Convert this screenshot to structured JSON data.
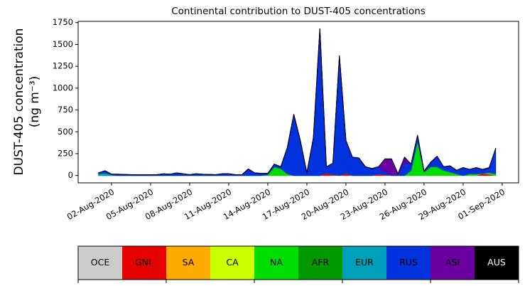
{
  "chart_data": {
    "type": "stacked_area",
    "title": "Continental contribution to DUST-405 concentrations",
    "y_label": [
      "DUST-405 concentration",
      "(ng m⁻³)"
    ],
    "x": [
      "2020-08-01T00:00",
      "2020-08-01T12:00",
      "2020-08-02T00:00",
      "2020-08-02T12:00",
      "2020-08-03T00:00",
      "2020-08-03T12:00",
      "2020-08-04T00:00",
      "2020-08-04T12:00",
      "2020-08-05T00:00",
      "2020-08-05T12:00",
      "2020-08-06T00:00",
      "2020-08-06T12:00",
      "2020-08-07T00:00",
      "2020-08-07T12:00",
      "2020-08-08T00:00",
      "2020-08-08T12:00",
      "2020-08-09T00:00",
      "2020-08-09T12:00",
      "2020-08-10T00:00",
      "2020-08-10T12:00",
      "2020-08-11T00:00",
      "2020-08-11T12:00",
      "2020-08-12T00:00",
      "2020-08-12T12:00",
      "2020-08-13T00:00",
      "2020-08-13T12:00",
      "2020-08-14T00:00",
      "2020-08-14T12:00",
      "2020-08-15T00:00",
      "2020-08-15T12:00",
      "2020-08-16T00:00",
      "2020-08-16T12:00",
      "2020-08-17T00:00",
      "2020-08-17T12:00",
      "2020-08-18T00:00",
      "2020-08-18T12:00",
      "2020-08-19T00:00",
      "2020-08-19T12:00",
      "2020-08-20T00:00",
      "2020-08-20T12:00",
      "2020-08-21T00:00",
      "2020-08-21T12:00",
      "2020-08-22T00:00",
      "2020-08-22T12:00",
      "2020-08-23T00:00",
      "2020-08-23T12:00",
      "2020-08-24T00:00",
      "2020-08-24T12:00",
      "2020-08-25T00:00",
      "2020-08-25T12:00",
      "2020-08-26T00:00",
      "2020-08-26T12:00",
      "2020-08-27T00:00",
      "2020-08-27T12:00",
      "2020-08-28T00:00",
      "2020-08-28T12:00",
      "2020-08-29T00:00",
      "2020-08-29T12:00",
      "2020-08-30T00:00",
      "2020-08-30T12:00",
      "2020-08-31T00:00",
      "2020-08-31T12:00"
    ],
    "series": [
      {
        "name": "OCE",
        "color": "#cccccc",
        "values": [
          0,
          0,
          0,
          0,
          0,
          0,
          0,
          0,
          0,
          0,
          0,
          0,
          0,
          0,
          0,
          0,
          0,
          0,
          0,
          0,
          0,
          0,
          0,
          0,
          0,
          0,
          0,
          0,
          0,
          0,
          0,
          0,
          0,
          0,
          0,
          0,
          0,
          0,
          0,
          0,
          0,
          0,
          0,
          0,
          0,
          0,
          0,
          0,
          0,
          0,
          0,
          0,
          0,
          0,
          0,
          0,
          0,
          0,
          0,
          0,
          0,
          0
        ]
      },
      {
        "name": "GNL",
        "color": "#e60000",
        "values": [
          0,
          0,
          0,
          0,
          0,
          0,
          0,
          0,
          0,
          0,
          0,
          0,
          0,
          0,
          0,
          0,
          0,
          0,
          0,
          0,
          0,
          0,
          0,
          0,
          0,
          0,
          0,
          0,
          0,
          0,
          0,
          0,
          0,
          0,
          0,
          30,
          10,
          0,
          25,
          0,
          0,
          0,
          0,
          20,
          10,
          0,
          0,
          0,
          0,
          0,
          0,
          0,
          0,
          0,
          0,
          0,
          0,
          0,
          0,
          25,
          15,
          0
        ]
      },
      {
        "name": "SA",
        "color": "#ffaa00",
        "values": [
          0,
          0,
          0,
          0,
          0,
          0,
          0,
          0,
          0,
          0,
          0,
          0,
          0,
          0,
          0,
          0,
          0,
          0,
          0,
          0,
          0,
          0,
          0,
          0,
          0,
          0,
          0,
          0,
          0,
          0,
          0,
          0,
          0,
          0,
          0,
          0,
          0,
          0,
          0,
          0,
          0,
          0,
          0,
          0,
          0,
          0,
          0,
          0,
          0,
          0,
          0,
          0,
          0,
          0,
          0,
          0,
          0,
          0,
          0,
          0,
          0,
          0
        ]
      },
      {
        "name": "CA",
        "color": "#ccff00",
        "values": [
          0,
          0,
          0,
          0,
          0,
          0,
          0,
          0,
          0,
          0,
          0,
          0,
          0,
          0,
          0,
          0,
          0,
          0,
          0,
          0,
          0,
          0,
          0,
          0,
          0,
          0,
          0,
          0,
          0,
          0,
          0,
          0,
          0,
          0,
          0,
          0,
          0,
          0,
          0,
          0,
          0,
          0,
          0,
          0,
          0,
          0,
          0,
          0,
          0,
          0,
          0,
          0,
          0,
          0,
          0,
          0,
          0,
          0,
          0,
          0,
          0,
          0
        ]
      },
      {
        "name": "NA",
        "color": "#00dd00",
        "values": [
          0,
          0,
          0,
          0,
          0,
          0,
          0,
          0,
          0,
          0,
          0,
          0,
          0,
          0,
          0,
          0,
          0,
          0,
          0,
          0,
          0,
          0,
          0,
          0,
          0,
          0,
          10,
          100,
          80,
          20,
          0,
          0,
          0,
          0,
          0,
          0,
          0,
          0,
          0,
          0,
          0,
          0,
          0,
          0,
          0,
          0,
          0,
          0,
          60,
          400,
          40,
          100,
          100,
          60,
          40,
          20,
          0,
          20,
          20,
          0,
          20,
          20
        ]
      },
      {
        "name": "AFR",
        "color": "#009900",
        "values": [
          0,
          0,
          0,
          0,
          0,
          0,
          0,
          0,
          0,
          0,
          0,
          0,
          0,
          0,
          0,
          0,
          0,
          0,
          0,
          0,
          0,
          0,
          0,
          0,
          0,
          0,
          0,
          0,
          0,
          0,
          0,
          0,
          0,
          0,
          0,
          0,
          0,
          0,
          0,
          0,
          0,
          0,
          0,
          0,
          0,
          0,
          0,
          0,
          0,
          0,
          0,
          0,
          0,
          0,
          0,
          0,
          0,
          0,
          0,
          0,
          0,
          0
        ]
      },
      {
        "name": "EUR",
        "color": "#00a0bb",
        "values": [
          20,
          30,
          8,
          0,
          0,
          0,
          0,
          0,
          0,
          0,
          0,
          0,
          0,
          0,
          0,
          0,
          0,
          0,
          0,
          0,
          0,
          0,
          0,
          0,
          0,
          0,
          0,
          0,
          0,
          0,
          0,
          0,
          0,
          0,
          0,
          0,
          0,
          0,
          0,
          0,
          0,
          0,
          0,
          0,
          0,
          0,
          0,
          0,
          0,
          0,
          0,
          0,
          0,
          0,
          0,
          0,
          0,
          0,
          0,
          0,
          0,
          0
        ]
      },
      {
        "name": "RUS",
        "color": "#0033dd",
        "values": [
          10,
          25,
          7,
          15,
          12,
          10,
          8,
          8,
          8,
          10,
          20,
          15,
          30,
          20,
          10,
          20,
          15,
          12,
          10,
          20,
          20,
          10,
          8,
          75,
          30,
          25,
          15,
          30,
          20,
          300,
          700,
          400,
          30,
          430,
          1680,
          70,
          130,
          1370,
          375,
          210,
          200,
          100,
          80,
          80,
          30,
          10,
          5,
          150,
          70,
          60,
          10,
          50,
          120,
          40,
          70,
          40,
          90,
          50,
          70,
          45,
          55,
          290
        ]
      },
      {
        "name": "ASI",
        "color": "#6a00a0",
        "values": [
          0,
          0,
          0,
          0,
          0,
          0,
          0,
          0,
          0,
          0,
          0,
          0,
          0,
          0,
          0,
          0,
          0,
          0,
          0,
          0,
          0,
          0,
          0,
          0,
          0,
          0,
          0,
          0,
          0,
          0,
          0,
          0,
          0,
          0,
          0,
          0,
          0,
          0,
          0,
          0,
          0,
          0,
          0,
          0,
          150,
          180,
          15,
          60,
          0,
          0,
          0,
          0,
          0,
          0,
          0,
          0,
          0,
          0,
          0,
          0,
          0,
          0
        ]
      },
      {
        "name": "AUS",
        "color": "#000000",
        "values": [
          0,
          0,
          0,
          0,
          0,
          0,
          0,
          0,
          0,
          0,
          0,
          0,
          0,
          0,
          0,
          0,
          0,
          0,
          0,
          0,
          0,
          0,
          0,
          0,
          0,
          0,
          0,
          0,
          0,
          0,
          0,
          0,
          0,
          0,
          0,
          0,
          0,
          0,
          0,
          0,
          0,
          0,
          0,
          0,
          0,
          0,
          0,
          0,
          0,
          0,
          0,
          0,
          0,
          0,
          0,
          0,
          0,
          0,
          0,
          0,
          0,
          0
        ]
      }
    ],
    "xlim": [
      "2020-07-30T10:30",
      "2020-09-02T06:15"
    ],
    "xticks": [
      {
        "value": "2020-08-02",
        "label": "02-Aug-2020"
      },
      {
        "value": "2020-08-05",
        "label": "05-Aug-2020"
      },
      {
        "value": "2020-08-08",
        "label": "08-Aug-2020"
      },
      {
        "value": "2020-08-11",
        "label": "11-Aug-2020"
      },
      {
        "value": "2020-08-14",
        "label": "14-Aug-2020"
      },
      {
        "value": "2020-08-17",
        "label": "17-Aug-2020"
      },
      {
        "value": "2020-08-20",
        "label": "20-Aug-2020"
      },
      {
        "value": "2020-08-23",
        "label": "23-Aug-2020"
      },
      {
        "value": "2020-08-26",
        "label": "26-Aug-2020"
      },
      {
        "value": "2020-08-29",
        "label": "29-Aug-2020"
      },
      {
        "value": "2020-09-01",
        "label": "01-Sep-2020"
      }
    ],
    "ylim": [
      -84,
      1764
    ],
    "yticks": [
      0,
      250,
      500,
      750,
      1000,
      1250,
      1500,
      1750
    ],
    "grid": false,
    "legend": "colorbar-bottom"
  }
}
